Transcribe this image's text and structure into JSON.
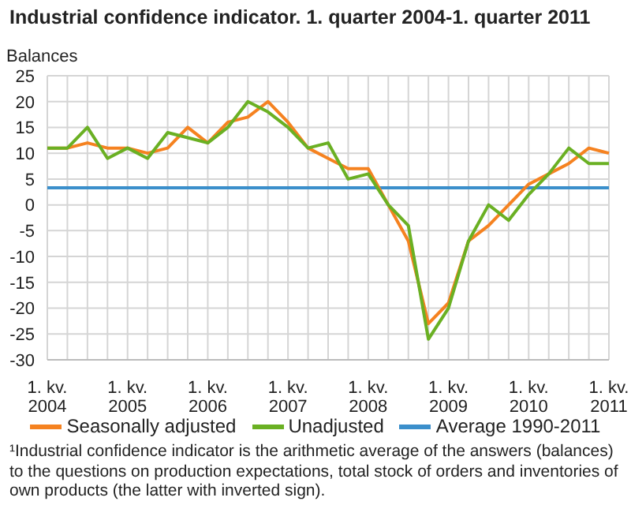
{
  "chart_data": {
    "type": "line",
    "title": "Industrial confidence indicator. 1. quarter 2004-1. quarter 2011",
    "ylabel": "Balances",
    "categories": [
      "1. kv. 2004",
      null,
      null,
      null,
      "1. kv. 2005",
      null,
      null,
      null,
      "1. kv. 2006",
      null,
      null,
      null,
      "1. kv. 2007",
      null,
      null,
      null,
      "1. kv. 2008",
      null,
      null,
      null,
      "1. kv. 2009",
      null,
      null,
      null,
      "1. kv. 2010",
      null,
      null,
      null,
      "1. kv. 2011"
    ],
    "series": [
      {
        "name": "Seasonally adjusted",
        "color": "#f58220",
        "values": [
          11,
          11,
          12,
          11,
          11,
          10,
          11,
          15,
          12,
          16,
          17,
          20,
          16,
          11,
          9,
          7,
          7,
          0,
          -7,
          -23,
          -19,
          -7,
          -4,
          0,
          4,
          6,
          8,
          11,
          10
        ]
      },
      {
        "name": "Unadjusted",
        "color": "#6ab023",
        "values": [
          11,
          11,
          15,
          9,
          11,
          9,
          14,
          13,
          12,
          15,
          20,
          18,
          15,
          11,
          12,
          5,
          6,
          0,
          -4,
          -26,
          -20,
          -7,
          0,
          -3,
          2,
          6,
          11,
          8,
          8
        ]
      }
    ],
    "ref_lines": [
      {
        "axis": "y",
        "value": 3.3,
        "label": "Average 1990-2011",
        "color": "#3b8fcb"
      }
    ],
    "ylim": [
      -30,
      25
    ],
    "yticks": [
      -30,
      -25,
      -20,
      -15,
      -10,
      -5,
      0,
      5,
      10,
      15,
      20,
      25
    ],
    "grid": true,
    "legend": "bottom",
    "annotations": [
      "¹Industrial confidence indicator is the arithmetic average of the answers (balances) to the questions on production expectations, total stock of orders and inventories of own products (the latter with inverted sign)."
    ]
  }
}
